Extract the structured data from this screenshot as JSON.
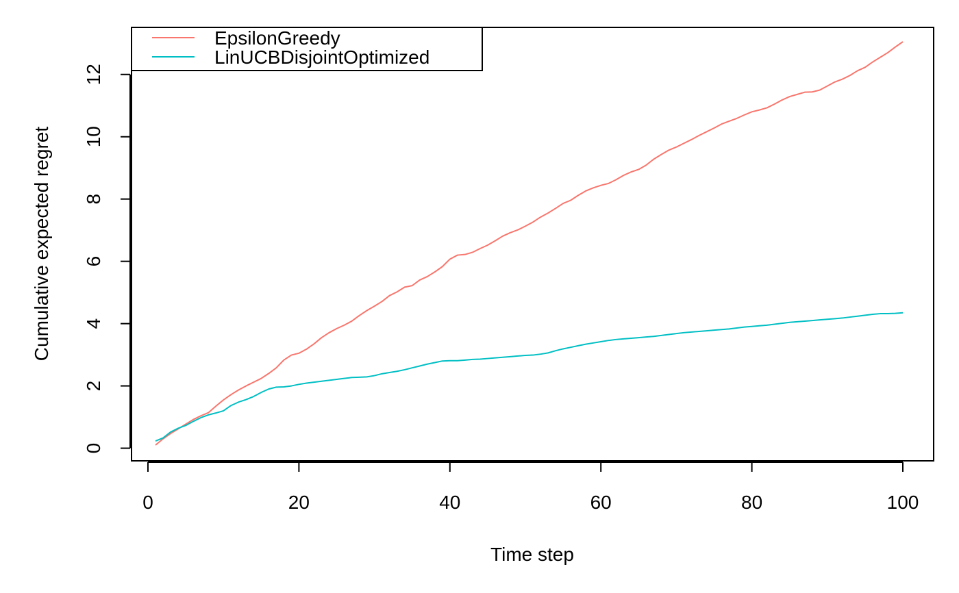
{
  "chart_data": {
    "type": "line",
    "xlabel": "Time step",
    "ylabel": "Cumulative expected regret",
    "xlim": [
      1,
      100
    ],
    "ylim": [
      0.1,
      13.05
    ],
    "x_ticks": [
      0,
      20,
      40,
      60,
      80,
      100
    ],
    "y_ticks": [
      0,
      2,
      4,
      6,
      8,
      10,
      12
    ],
    "x_tick_labels": [
      "0",
      "20",
      "40",
      "60",
      "80",
      "100"
    ],
    "y_tick_labels": [
      "0",
      "2",
      "4",
      "6",
      "8",
      "10",
      "12"
    ],
    "grid": false,
    "legend_position": "top-left",
    "x": [
      1,
      2,
      3,
      4,
      5,
      6,
      7,
      8,
      9,
      10,
      11,
      12,
      13,
      14,
      15,
      16,
      17,
      18,
      19,
      20,
      21,
      22,
      23,
      24,
      25,
      26,
      27,
      28,
      29,
      30,
      31,
      32,
      33,
      34,
      35,
      36,
      37,
      38,
      39,
      40,
      41,
      42,
      43,
      44,
      45,
      46,
      47,
      48,
      49,
      50,
      51,
      52,
      53,
      54,
      55,
      56,
      57,
      58,
      59,
      60,
      61,
      62,
      63,
      64,
      65,
      66,
      67,
      68,
      69,
      70,
      71,
      72,
      73,
      74,
      75,
      76,
      77,
      78,
      79,
      80,
      81,
      82,
      83,
      84,
      85,
      86,
      87,
      88,
      89,
      90,
      91,
      92,
      93,
      94,
      95,
      96,
      97,
      98,
      99,
      100
    ],
    "series": [
      {
        "name": "EpsilonGreedy",
        "color": "#F8766D",
        "values": [
          0.1,
          0.3,
          0.47,
          0.62,
          0.77,
          0.92,
          1.04,
          1.14,
          1.35,
          1.55,
          1.72,
          1.87,
          2.0,
          2.12,
          2.24,
          2.4,
          2.58,
          2.83,
          2.99,
          3.05,
          3.18,
          3.35,
          3.55,
          3.71,
          3.84,
          3.95,
          4.08,
          4.26,
          4.42,
          4.56,
          4.71,
          4.9,
          5.02,
          5.17,
          5.22,
          5.4,
          5.51,
          5.66,
          5.83,
          6.07,
          6.2,
          6.22,
          6.29,
          6.41,
          6.52,
          6.66,
          6.81,
          6.92,
          7.01,
          7.13,
          7.26,
          7.42,
          7.55,
          7.7,
          7.86,
          7.96,
          8.12,
          8.26,
          8.36,
          8.44,
          8.5,
          8.62,
          8.76,
          8.87,
          8.95,
          9.09,
          9.28,
          9.43,
          9.57,
          9.67,
          9.79,
          9.91,
          10.04,
          10.16,
          10.28,
          10.41,
          10.5,
          10.59,
          10.7,
          10.8,
          10.86,
          10.93,
          11.05,
          11.18,
          11.29,
          11.36,
          11.43,
          11.44,
          11.5,
          11.63,
          11.76,
          11.85,
          11.97,
          12.12,
          12.23,
          12.4,
          12.55,
          12.7,
          12.88,
          13.05
        ]
      },
      {
        "name": "LinUCBDisjointOptimized",
        "color": "#00BFC4",
        "values": [
          0.23,
          0.33,
          0.52,
          0.64,
          0.73,
          0.86,
          0.98,
          1.07,
          1.13,
          1.2,
          1.37,
          1.48,
          1.56,
          1.66,
          1.79,
          1.9,
          1.96,
          1.97,
          2.0,
          2.05,
          2.09,
          2.12,
          2.15,
          2.18,
          2.21,
          2.24,
          2.27,
          2.28,
          2.29,
          2.33,
          2.39,
          2.43,
          2.47,
          2.52,
          2.58,
          2.64,
          2.7,
          2.75,
          2.8,
          2.81,
          2.81,
          2.83,
          2.85,
          2.86,
          2.88,
          2.9,
          2.92,
          2.94,
          2.96,
          2.98,
          2.99,
          3.02,
          3.06,
          3.13,
          3.19,
          3.24,
          3.29,
          3.34,
          3.38,
          3.42,
          3.46,
          3.49,
          3.51,
          3.53,
          3.55,
          3.57,
          3.59,
          3.62,
          3.65,
          3.68,
          3.71,
          3.73,
          3.75,
          3.77,
          3.79,
          3.81,
          3.83,
          3.86,
          3.89,
          3.91,
          3.93,
          3.95,
          3.98,
          4.01,
          4.04,
          4.06,
          4.08,
          4.1,
          4.12,
          4.14,
          4.16,
          4.18,
          4.21,
          4.24,
          4.27,
          4.3,
          4.32,
          4.32,
          4.33,
          4.35
        ]
      }
    ]
  }
}
